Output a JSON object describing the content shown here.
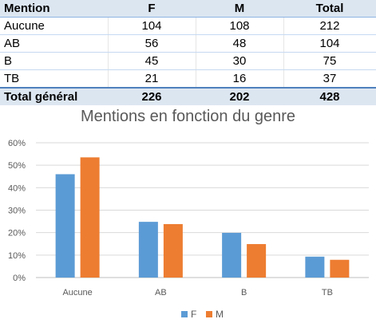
{
  "table": {
    "headers": [
      "Mention",
      "F",
      "M",
      "Total"
    ],
    "rows": [
      [
        "Aucune",
        "104",
        "108",
        "212"
      ],
      [
        "AB",
        "56",
        "48",
        "104"
      ],
      [
        "B",
        "45",
        "30",
        "75"
      ],
      [
        "TB",
        "21",
        "16",
        "37"
      ]
    ],
    "footer": [
      "Total général",
      "226",
      "202",
      "428"
    ]
  },
  "chart_data": {
    "type": "bar",
    "title": "Mentions en fonction du genre",
    "categories": [
      "Aucune",
      "AB",
      "B",
      "TB"
    ],
    "series": [
      {
        "name": "F",
        "color": "#5b9bd5",
        "values": [
          0.46,
          0.248,
          0.199,
          0.093
        ]
      },
      {
        "name": "M",
        "color": "#ed7d31",
        "values": [
          0.535,
          0.238,
          0.149,
          0.079
        ]
      }
    ],
    "ylim": [
      0,
      0.6
    ],
    "yticks": [
      "0%",
      "10%",
      "20%",
      "30%",
      "40%",
      "50%",
      "60%"
    ],
    "grid": true,
    "legend": "bottom"
  }
}
